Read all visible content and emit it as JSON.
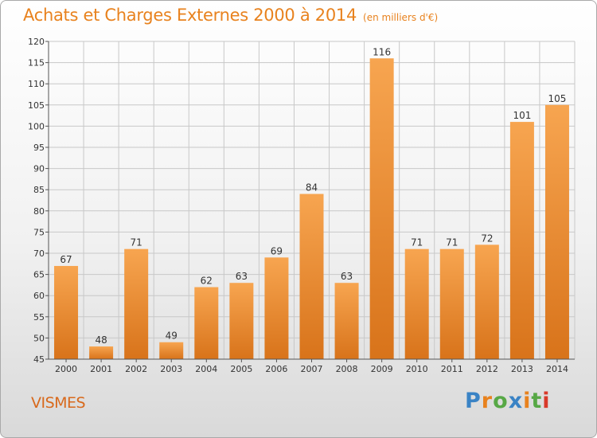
{
  "header": {
    "title": "Achats et Charges Externes 2000 à 2014",
    "subtitle": "(en milliers d'€)"
  },
  "footer": {
    "region": "VISMES",
    "logo": "Proxiti"
  },
  "colors": {
    "title": "#e8821e",
    "bar_light": "#f7a550",
    "bar_dark": "#d8731a",
    "grid": "#c8c8c8",
    "logo_letters": [
      "#3a83c5",
      "#e8821e",
      "#57a846",
      "#3a83c5",
      "#e8821e",
      "#57a846",
      "#d83a2a"
    ]
  },
  "chart_data": {
    "type": "bar",
    "title": "Achats et Charges Externes 2000 à 2014",
    "subtitle": "(en milliers d'€)",
    "categories": [
      "2000",
      "2001",
      "2002",
      "2003",
      "2004",
      "2005",
      "2006",
      "2007",
      "2008",
      "2009",
      "2010",
      "2011",
      "2012",
      "2013",
      "2014"
    ],
    "values": [
      67,
      48,
      71,
      49,
      62,
      63,
      69,
      84,
      63,
      116,
      71,
      71,
      72,
      101,
      105
    ],
    "ylim": [
      45,
      120
    ],
    "yticks": [
      45,
      50,
      55,
      60,
      65,
      70,
      75,
      80,
      85,
      90,
      95,
      100,
      105,
      110,
      115,
      120
    ],
    "grid": true,
    "data_labels": true
  }
}
